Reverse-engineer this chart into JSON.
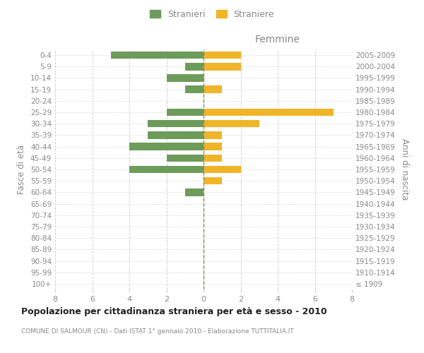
{
  "age_groups": [
    "100+",
    "95-99",
    "90-94",
    "85-89",
    "80-84",
    "75-79",
    "70-74",
    "65-69",
    "60-64",
    "55-59",
    "50-54",
    "45-49",
    "40-44",
    "35-39",
    "30-34",
    "25-29",
    "20-24",
    "15-19",
    "10-14",
    "5-9",
    "0-4"
  ],
  "birth_years": [
    "≤ 1909",
    "1910-1914",
    "1915-1919",
    "1920-1924",
    "1925-1929",
    "1930-1934",
    "1935-1939",
    "1940-1944",
    "1945-1949",
    "1950-1954",
    "1955-1959",
    "1960-1964",
    "1965-1969",
    "1970-1974",
    "1975-1979",
    "1980-1984",
    "1985-1989",
    "1990-1994",
    "1995-1999",
    "2000-2004",
    "2005-2009"
  ],
  "males": [
    0,
    0,
    0,
    0,
    0,
    0,
    0,
    0,
    1,
    0,
    4,
    2,
    4,
    3,
    3,
    2,
    0,
    1,
    2,
    1,
    5
  ],
  "females": [
    0,
    0,
    0,
    0,
    0,
    0,
    0,
    0,
    0,
    1,
    2,
    1,
    1,
    1,
    3,
    7,
    0,
    1,
    0,
    2,
    2
  ],
  "male_color": "#6d9c5a",
  "female_color": "#f0b429",
  "title": "Popolazione per cittadinanza straniera per età e sesso - 2010",
  "subtitle": "COMUNE DI SALMOUR (CN) - Dati ISTAT 1° gennaio 2010 - Elaborazione TUTTITALIA.IT",
  "ylabel_left": "Fasce di età",
  "ylabel_right": "Anni di nascita",
  "xlabel_right": "Femmine",
  "legend_male": "Stranieri",
  "legend_female": "Straniere",
  "xlim": 8,
  "background_color": "#ffffff",
  "grid_color": "#cccccc",
  "tick_label_color": "#888888",
  "title_color": "#222222",
  "subtitle_color": "#888888"
}
